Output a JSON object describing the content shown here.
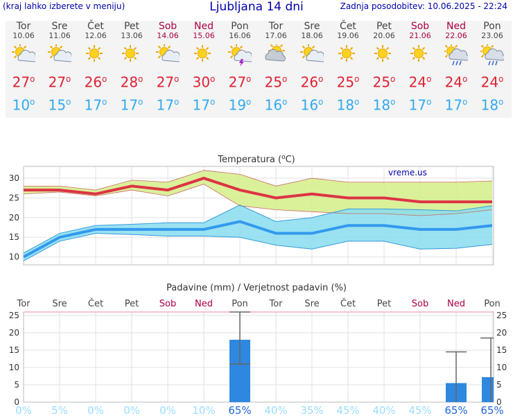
{
  "header": {
    "left": "(kraj lahko izberete v meniju)",
    "title": "Ljubljana 14 dni",
    "right": "Zadnja posodobitev: 10.06.2025 - 22:24"
  },
  "days": [
    {
      "name": "Tor",
      "date": "10.06",
      "weekend": false,
      "icon": "sun-cloud-icon",
      "max": "27",
      "min": "10"
    },
    {
      "name": "Sre",
      "date": "11.06",
      "weekend": false,
      "icon": "sun-cloud-icon",
      "max": "27",
      "min": "15"
    },
    {
      "name": "Čet",
      "date": "12.06",
      "weekend": false,
      "icon": "sun-icon",
      "max": "26",
      "min": "17"
    },
    {
      "name": "Pet",
      "date": "13.06",
      "weekend": false,
      "icon": "sun-icon",
      "max": "28",
      "min": "17"
    },
    {
      "name": "Sob",
      "date": "14.06",
      "weekend": true,
      "icon": "sun-cloud-icon",
      "max": "27",
      "min": "17"
    },
    {
      "name": "Ned",
      "date": "15.06",
      "weekend": true,
      "icon": "sun-icon",
      "max": "30",
      "min": "17"
    },
    {
      "name": "Pon",
      "date": "16.06",
      "weekend": false,
      "icon": "sun-cloud-lightning-icon",
      "max": "27",
      "min": "19"
    },
    {
      "name": "Tor",
      "date": "17.06",
      "weekend": false,
      "icon": "cloud-sun-icon",
      "max": "25",
      "min": "16"
    },
    {
      "name": "Sre",
      "date": "18.06",
      "weekend": false,
      "icon": "sun-cloud-icon",
      "max": "26",
      "min": "16"
    },
    {
      "name": "Čet",
      "date": "19.06",
      "weekend": false,
      "icon": "sun-icon",
      "max": "25",
      "min": "18"
    },
    {
      "name": "Pet",
      "date": "20.06",
      "weekend": false,
      "icon": "sun-icon",
      "max": "25",
      "min": "18"
    },
    {
      "name": "Sob",
      "date": "21.06",
      "weekend": true,
      "icon": "sun-icon",
      "max": "24",
      "min": "17"
    },
    {
      "name": "Ned",
      "date": "22.06",
      "weekend": true,
      "icon": "sun-cloud-rain-icon",
      "max": "24",
      "min": "17"
    },
    {
      "name": "Pon",
      "date": "23.06",
      "weekend": false,
      "icon": "sun-cloud-rain-icon",
      "max": "24",
      "min": "18"
    }
  ],
  "degree_symbol": "o",
  "chart_data": [
    {
      "type": "line",
      "title": "Temperatura (oC)",
      "title_main": "Temperatura (",
      "title_sup": "o",
      "title_end": "C)",
      "watermark": "vreme.us",
      "ylim": [
        8,
        33
      ],
      "yticks": [
        10,
        15,
        20,
        25,
        30
      ],
      "grid": true,
      "categories": [
        "Tor",
        "Sre",
        "Čet",
        "Pet",
        "Sob",
        "Ned",
        "Pon",
        "Tor",
        "Sre",
        "Čet",
        "Pet",
        "Sob",
        "Ned",
        "Pon"
      ],
      "colors": {
        "max": "#dd3344",
        "min": "#3399ee",
        "max_band": "#d4ee88",
        "max_band2": "#99dd77",
        "min_band": "#88ddee"
      },
      "series": [
        {
          "name": "max",
          "values": [
            27,
            27,
            26,
            28,
            27,
            30,
            27,
            25,
            26,
            25,
            25,
            24,
            24,
            24
          ]
        },
        {
          "name": "max_high",
          "values": [
            28,
            28,
            27,
            29.5,
            29,
            32,
            31,
            28,
            30,
            29,
            29,
            29,
            29,
            29.3
          ]
        },
        {
          "name": "max_low",
          "values": [
            26,
            26.5,
            25.5,
            27,
            25.5,
            28.5,
            23,
            22,
            21.5,
            21,
            21,
            20.5,
            21,
            22
          ]
        },
        {
          "name": "min",
          "values": [
            10,
            15,
            17,
            17,
            17,
            17,
            19,
            16,
            16,
            18,
            18,
            17,
            17,
            18
          ]
        },
        {
          "name": "min_high",
          "values": [
            11,
            16,
            18,
            18.3,
            18.7,
            18.7,
            23.2,
            19,
            20,
            22.2,
            22.2,
            22,
            21.7,
            23
          ]
        },
        {
          "name": "min_low",
          "values": [
            9,
            14,
            16,
            15.7,
            15.3,
            15.3,
            15,
            13,
            12,
            14,
            14,
            12,
            12.2,
            13.2
          ]
        }
      ]
    },
    {
      "type": "bar",
      "title": "Padavine (mm) / Verjetnost padavin (%)",
      "categories": [
        "Tor",
        "Sre",
        "Čet",
        "Pet",
        "Sob",
        "Ned",
        "Pon",
        "Tor",
        "Sre",
        "Čet",
        "Pet",
        "Sob",
        "Ned",
        "Pon"
      ],
      "ylim": [
        0,
        26
      ],
      "yticks": [
        0,
        5,
        10,
        15,
        20,
        25
      ],
      "values": [
        0,
        0,
        0,
        0,
        0,
        0,
        18,
        0,
        0,
        0,
        0,
        0,
        5.5,
        7.2
      ],
      "error_high": [
        null,
        null,
        null,
        null,
        null,
        null,
        26,
        null,
        null,
        null,
        null,
        null,
        14.5,
        18.5
      ],
      "error_low": [
        null,
        null,
        null,
        null,
        null,
        null,
        11,
        null,
        null,
        null,
        null,
        null,
        0,
        0
      ],
      "probability": [
        "0%",
        "5%",
        "0%",
        "0%",
        "0%",
        "10%",
        "65%",
        "40%",
        "35%",
        "45%",
        "40%",
        "45%",
        "65%",
        "65%"
      ],
      "probability_values": [
        0,
        5,
        0,
        0,
        0,
        10,
        65,
        40,
        35,
        45,
        40,
        45,
        65,
        65
      ],
      "colors": {
        "bar": "#2f88e0",
        "prob_low": "#99ddff",
        "prob_high": "#2266dd",
        "error": "#666666"
      }
    }
  ]
}
